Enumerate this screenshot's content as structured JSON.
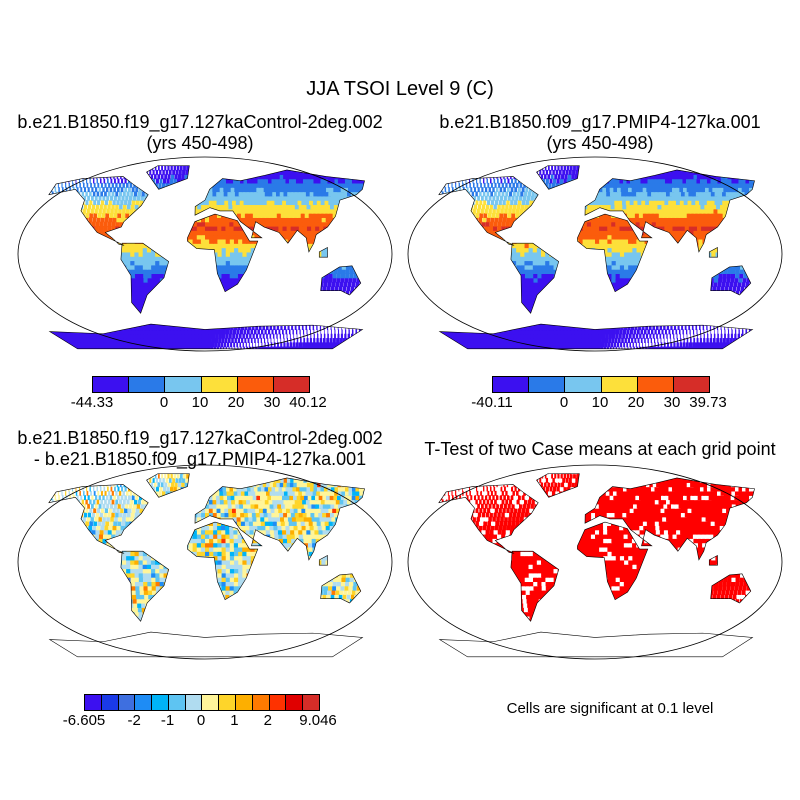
{
  "title": "JJA TSOI Level 9 (C)",
  "panels": [
    {
      "title_line1": "b.e21.B1850.f19_g17.127kaControl-2deg.002",
      "title_line2": "(yrs 450-498)"
    },
    {
      "title_line1": "b.e21.B1850.f09_g17.PMIP4-127ka.001",
      "title_line2": "(yrs 450-498)"
    },
    {
      "title_line1": "b.e21.B1850.f19_g17.127kaControl-2deg.002",
      "title_line2": "- b.e21.B1850.f09_g17.PMIP4-127ka.001"
    },
    {
      "title_line1": "T-Test of two Case means at each grid point",
      "title_line2": ""
    }
  ],
  "colorbars": [
    {
      "colors": [
        "#3c10f0",
        "#2a7ae8",
        "#78c6ef",
        "#fde03a",
        "#fb5c0c",
        "#d62d28"
      ],
      "labels": [
        {
          "text": "-44.33",
          "at": 0
        },
        {
          "text": "0",
          "at": 2
        },
        {
          "text": "10",
          "at": 3
        },
        {
          "text": "20",
          "at": 4
        },
        {
          "text": "30",
          "at": 5
        },
        {
          "text": "40.12",
          "at": 6
        }
      ]
    },
    {
      "colors": [
        "#3c10f0",
        "#2a7ae8",
        "#78c6ef",
        "#fde03a",
        "#fb5c0c",
        "#d62d28"
      ],
      "labels": [
        {
          "text": "-40.11",
          "at": 0
        },
        {
          "text": "0",
          "at": 2
        },
        {
          "text": "10",
          "at": 3
        },
        {
          "text": "20",
          "at": 4
        },
        {
          "text": "30",
          "at": 5
        },
        {
          "text": "39.73",
          "at": 6
        }
      ]
    },
    {
      "colors": [
        "#3c10f0",
        "#1a3ae8",
        "#3e6fe0",
        "#1e8cf5",
        "#00b4f8",
        "#5ec4f2",
        "#b0dcf0",
        "#fff59a",
        "#fed52a",
        "#fdaf00",
        "#fe7a00",
        "#fe3200",
        "#e00000",
        "#d62d28"
      ],
      "labels": [
        {
          "text": "-6.605",
          "at": 0
        },
        {
          "text": "-2",
          "at": 3
        },
        {
          "text": "-1",
          "at": 5
        },
        {
          "text": "0",
          "at": 7
        },
        {
          "text": "1",
          "at": 9
        },
        {
          "text": "2",
          "at": 11
        },
        {
          "text": "9.046",
          "at": 14
        }
      ]
    }
  ],
  "significance_color": "#ff0000",
  "footer": "Cells are significant at 0.1 level"
}
